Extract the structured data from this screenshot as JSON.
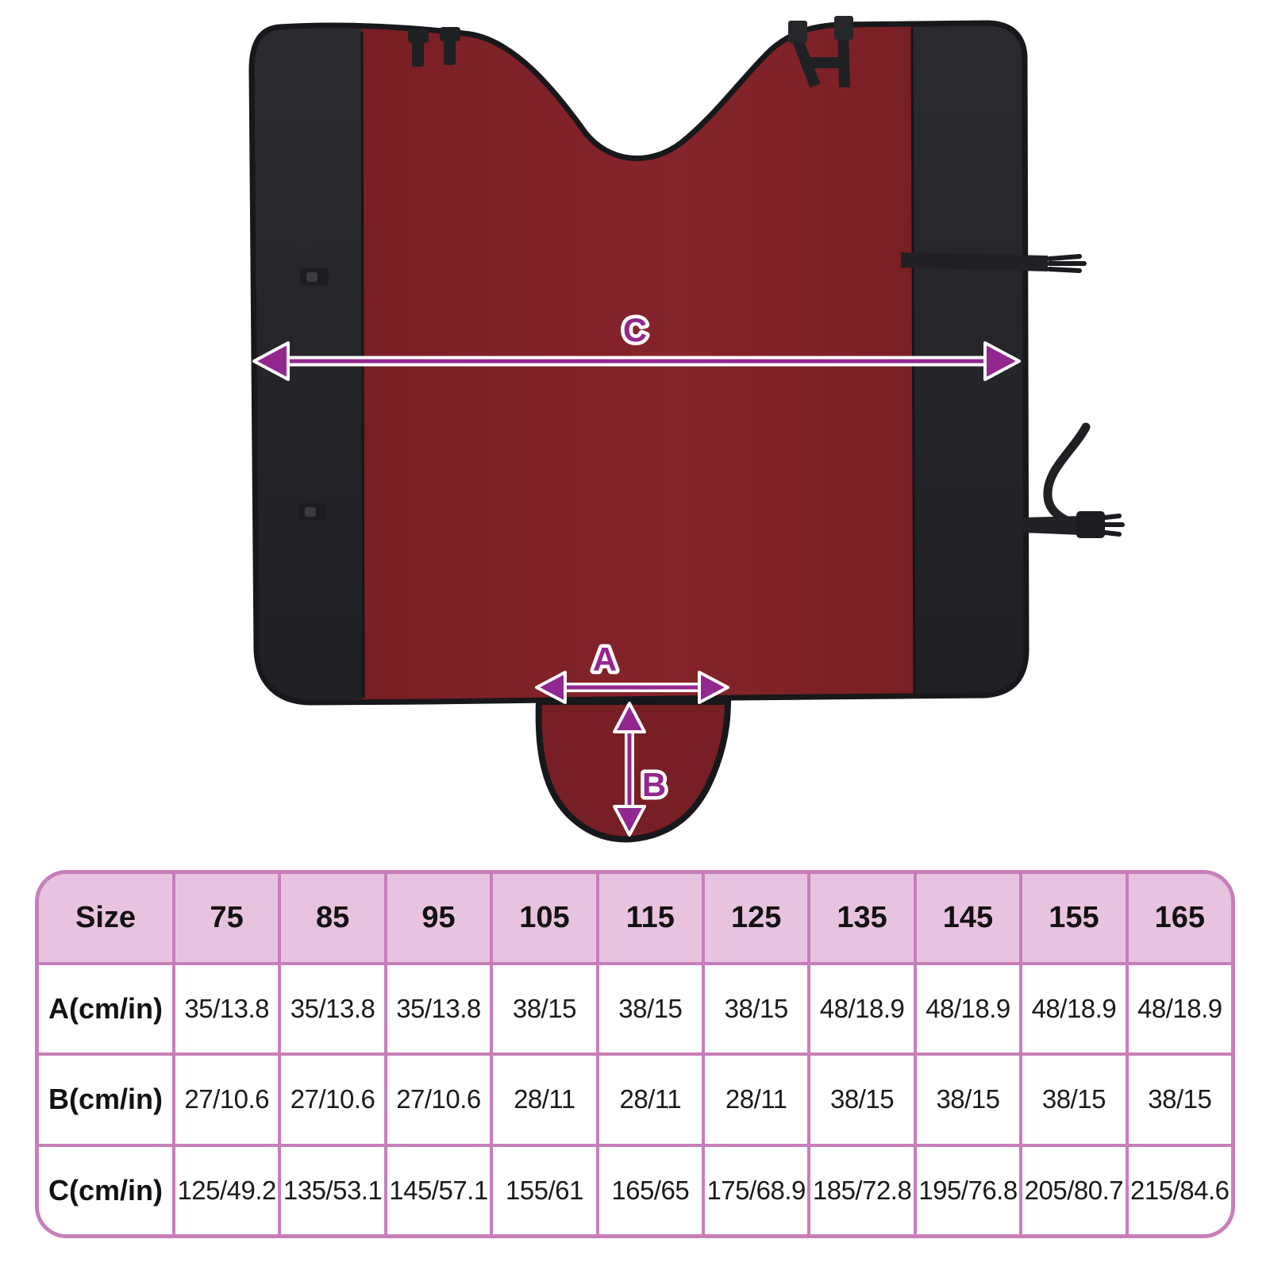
{
  "diagram": {
    "measures": {
      "a": {
        "label": "A"
      },
      "b": {
        "label": "B"
      },
      "c": {
        "label": "C"
      }
    },
    "colors": {
      "fabric_red": "#7d2127",
      "fabric_red_dark": "#701c21",
      "fabric_panel_black": "#242629",
      "trim_black": "#17181b",
      "arrow_purple": "#92278f",
      "arrow_outline_white": "#ffffff"
    }
  },
  "table": {
    "header": [
      "Size",
      "75",
      "85",
      "95",
      "105",
      "115",
      "125",
      "135",
      "145",
      "155",
      "165"
    ],
    "rows": [
      {
        "label": "A(cm/in)",
        "values": [
          "35/13.8",
          "35/13.8",
          "35/13.8",
          "38/15",
          "38/15",
          "38/15",
          "48/18.9",
          "48/18.9",
          "48/18.9",
          "48/18.9"
        ]
      },
      {
        "label": "B(cm/in)",
        "values": [
          "27/10.6",
          "27/10.6",
          "27/10.6",
          "28/11",
          "28/11",
          "28/11",
          "38/15",
          "38/15",
          "38/15",
          "38/15"
        ]
      },
      {
        "label": "C(cm/in)",
        "values": [
          "125/49.2",
          "135/53.1",
          "145/57.1",
          "155/61",
          "165/65",
          "175/68.9",
          "185/72.8",
          "195/76.8",
          "205/80.7",
          "215/84.6"
        ]
      }
    ],
    "colors": {
      "border_pink": "#c77eba",
      "header_bg_pink": "#e8c3e0",
      "cell_bg": "#ffffff",
      "text": "#121212"
    }
  }
}
